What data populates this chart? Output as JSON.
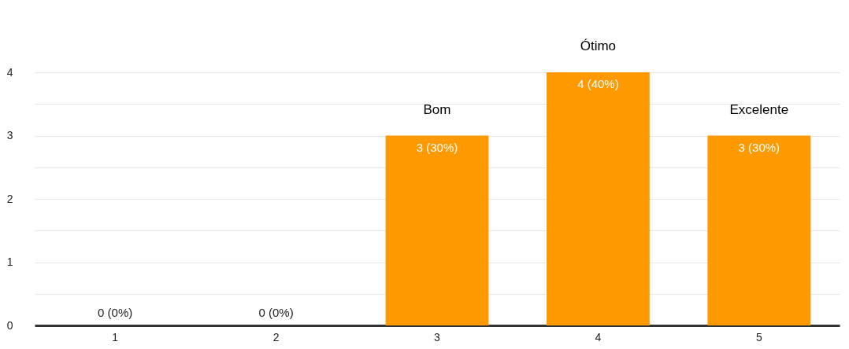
{
  "chart_data": {
    "type": "bar",
    "categories": [
      "1",
      "2",
      "3",
      "4",
      "5"
    ],
    "values": [
      0,
      0,
      3,
      4,
      3
    ],
    "color": "#ff9900",
    "value_labels": [
      "0 (0%)",
      "0 (0%)",
      "3 (30%)",
      "4 (40%)",
      "3 (30%)"
    ],
    "annotations": [
      {
        "text": "Bom",
        "x": "3",
        "y": 3
      },
      {
        "text": "Ótimo",
        "x": "4",
        "y": 4
      },
      {
        "text": "Excelente",
        "x": "5",
        "y": 3
      }
    ],
    "ylim": [
      0,
      4
    ],
    "yticks": [
      0,
      {
        "value": 0.5,
        "label": null
      },
      1,
      {
        "value": 1.5,
        "label": null
      },
      2,
      {
        "value": 2.5,
        "label": null
      },
      3,
      {
        "value": 3.5,
        "label": null
      },
      4
    ],
    "grid": "y"
  }
}
